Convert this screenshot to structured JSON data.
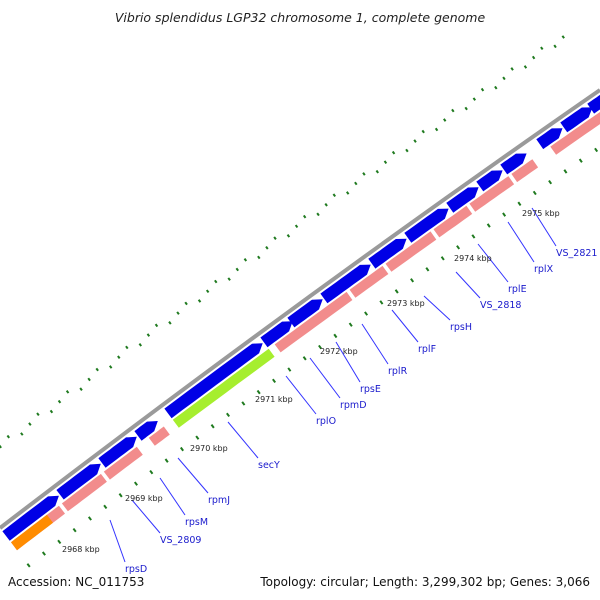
{
  "title": "Vibrio splendidus LGP32 chromosome 1, complete genome",
  "footer": {
    "accession_label": "Accession:",
    "accession": "NC_011753",
    "topology_label": "Topology:",
    "topology": "circular",
    "length_label": "Length:",
    "length": "3,299,302 bp",
    "genes_label": "Genes:",
    "genes": "3,066"
  },
  "colors": {
    "backbone": "#9a9a9a",
    "forward_gene": "#0000e6",
    "reverse_gene": "#f28c8c",
    "highlight_gene": "#a6ee2e",
    "orange_gene": "#ff8c00",
    "gc_marks": "#1f7a1f",
    "label_line": "#3333ff"
  },
  "ticks": [
    "2968 kbp",
    "2969 kbp",
    "2970 kbp",
    "2971 kbp",
    "2972 kbp",
    "2973 kbp",
    "2974 kbp",
    "2975 kbp"
  ],
  "gene_labels": [
    "rpsD",
    "VS_2809",
    "rpsM",
    "rpmJ",
    "secY",
    "rplO",
    "rpmD",
    "rpsE",
    "rplR",
    "rplF",
    "rpsH",
    "VS_2818",
    "rplE",
    "rplX",
    "VS_2821"
  ]
}
